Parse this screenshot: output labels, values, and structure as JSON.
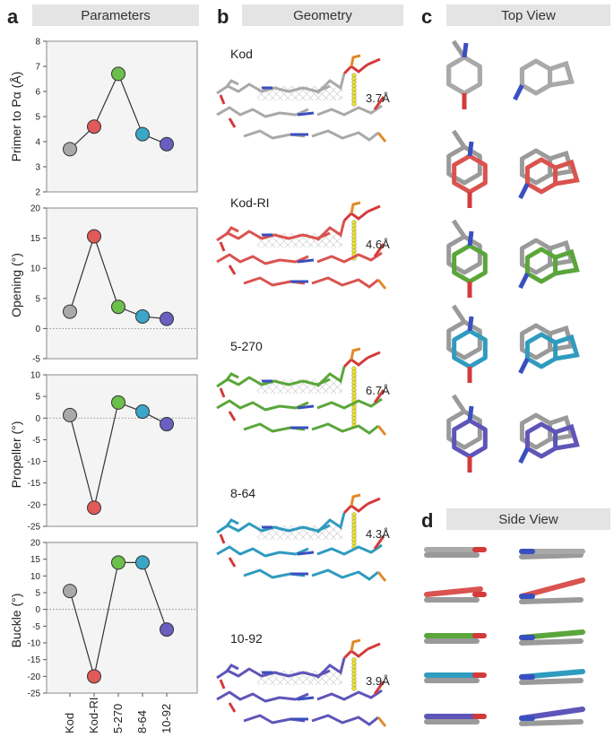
{
  "panels": {
    "a": {
      "letter": "a",
      "title": "Parameters"
    },
    "b": {
      "letter": "b",
      "title": "Geometry"
    },
    "c": {
      "letter": "c",
      "title": "Top View"
    },
    "d": {
      "letter": "d",
      "title": "Side View"
    }
  },
  "categories": [
    "Kod",
    "Kod-RI",
    "5-270",
    "8-64",
    "10-92"
  ],
  "point_colors": [
    "#a9a9a9",
    "#e05a5a",
    "#6cbf4a",
    "#3aa7c7",
    "#6a5fc1"
  ],
  "chart_data": [
    {
      "type": "line",
      "ylabel": "Primer to Pα (Å)",
      "ylim": [
        2,
        8
      ],
      "yticks": [
        2,
        3,
        4,
        5,
        6,
        7,
        8
      ],
      "categories": [
        "Kod",
        "Kod-RI",
        "5-270",
        "8-64",
        "10-92"
      ],
      "values": [
        3.7,
        4.6,
        6.7,
        4.3,
        3.9
      ],
      "zero_line": false
    },
    {
      "type": "line",
      "ylabel": "Opening (°)",
      "ylim": [
        -5,
        20
      ],
      "yticks": [
        -5,
        0,
        5,
        10,
        15,
        20
      ],
      "categories": [
        "Kod",
        "Kod-RI",
        "5-270",
        "8-64",
        "10-92"
      ],
      "values": [
        2.8,
        15.3,
        3.6,
        2.0,
        1.6
      ],
      "zero_line": true
    },
    {
      "type": "line",
      "ylabel": "Propeller (°)",
      "ylim": [
        -25,
        10
      ],
      "yticks": [
        -25,
        -20,
        -15,
        -10,
        -5,
        0,
        5,
        10
      ],
      "categories": [
        "Kod",
        "Kod-RI",
        "5-270",
        "8-64",
        "10-92"
      ],
      "values": [
        0.7,
        -20.7,
        3.6,
        1.5,
        -1.4
      ],
      "zero_line": true
    },
    {
      "type": "line",
      "ylabel": "Buckle (°)",
      "ylim": [
        -25,
        20
      ],
      "yticks": [
        -25,
        -20,
        -15,
        -10,
        -5,
        0,
        5,
        10,
        15,
        20
      ],
      "categories": [
        "Kod",
        "Kod-RI",
        "5-270",
        "8-64",
        "10-92"
      ],
      "values": [
        5.5,
        -20.0,
        14.0,
        14.0,
        -6.0
      ],
      "zero_line": true
    }
  ],
  "geometry": [
    {
      "name": "Kod",
      "distance": "3.7Å",
      "color": "#a9a9a9"
    },
    {
      "name": "Kod-RI",
      "distance": "4.6Å",
      "color": "#d9534f"
    },
    {
      "name": "5-270",
      "distance": "6.7Å",
      "color": "#5aa63a"
    },
    {
      "name": "8-64",
      "distance": "4.3Å",
      "color": "#2f9bbf"
    },
    {
      "name": "10-92",
      "distance": "3.9Å",
      "color": "#5f55b8"
    }
  ],
  "atom_colors": {
    "carbon_ref": "#9a9a9a",
    "nitrogen": "#3a4fbf",
    "oxygen": "#d43a3a",
    "phosphorus": "#e08a2a",
    "sulfur_link": "#e8e02a"
  }
}
